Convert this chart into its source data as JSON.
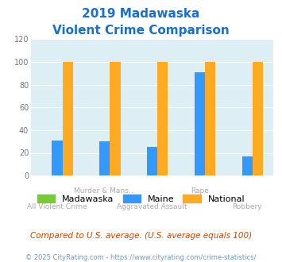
{
  "title_line1": "2019 Madawaska",
  "title_line2": "Violent Crime Comparison",
  "madawaska_values": [
    0,
    0,
    0,
    0,
    0
  ],
  "maine_values": [
    31,
    30,
    25,
    91,
    17
  ],
  "national_values": [
    100,
    100,
    100,
    100,
    100
  ],
  "madawaska_color": "#77cc33",
  "maine_color": "#3399ff",
  "national_color": "#ffaa22",
  "ylim": [
    0,
    120
  ],
  "yticks": [
    0,
    20,
    40,
    60,
    80,
    100,
    120
  ],
  "bg_color": "#ddeef5",
  "title_color": "#1a6ecc",
  "subtitle_note": "Compared to U.S. average. (U.S. average equals 100)",
  "footer": "© 2025 CityRating.com - https://www.cityrating.com/crime-statistics/",
  "subtitle_color": "#cc4400",
  "footer_color": "#7799bb",
  "legend_labels": [
    "Madawaska",
    "Maine",
    "National"
  ],
  "row1_labels": [
    "",
    "Murder & Mans...",
    "",
    "Rape",
    ""
  ],
  "row2_labels": [
    "All Violent Crime",
    "",
    "Aggravated Assault",
    "",
    "Robbery"
  ]
}
